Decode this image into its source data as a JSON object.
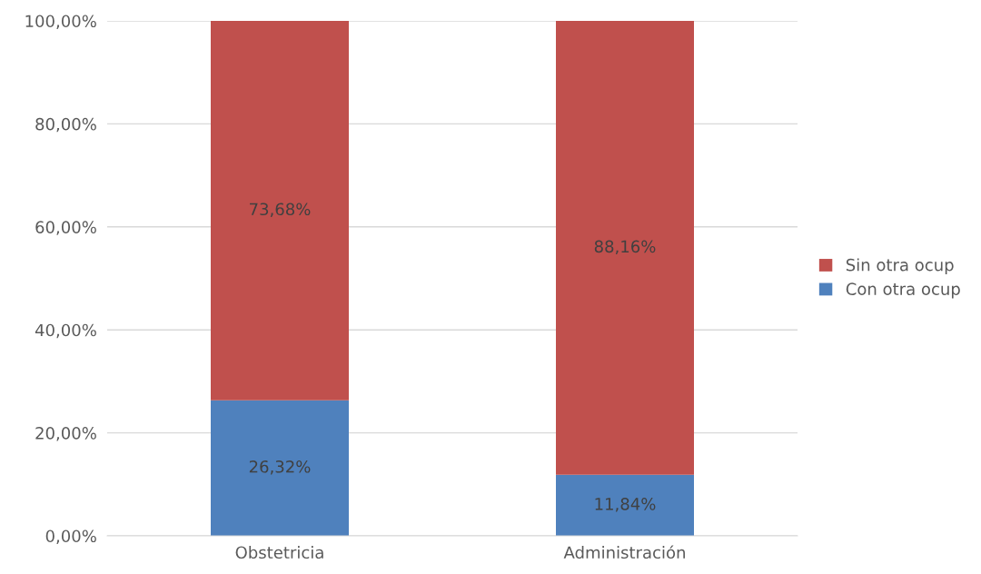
{
  "chart_data": {
    "type": "bar",
    "stacked": true,
    "categories": [
      "Obstetricia",
      "Administración"
    ],
    "series": [
      {
        "name": "Con otra ocup",
        "color": "#4f81bd",
        "values": [
          26.32,
          11.84
        ],
        "value_labels": [
          "26,32%",
          "11,84%"
        ]
      },
      {
        "name": "Sin otra ocup",
        "color": "#c0504d",
        "values": [
          73.68,
          88.16
        ],
        "value_labels": [
          "73,68%",
          "88,16%"
        ]
      }
    ],
    "ylim": [
      0,
      100
    ],
    "yticks": [
      {
        "value": 0,
        "label": "0,00%"
      },
      {
        "value": 20,
        "label": "20,00%"
      },
      {
        "value": 40,
        "label": "40,00%"
      },
      {
        "value": 60,
        "label": "60,00%"
      },
      {
        "value": 80,
        "label": "80,00%"
      },
      {
        "value": 100,
        "label": "100,00%"
      }
    ],
    "grid": "y",
    "legend": "right"
  }
}
